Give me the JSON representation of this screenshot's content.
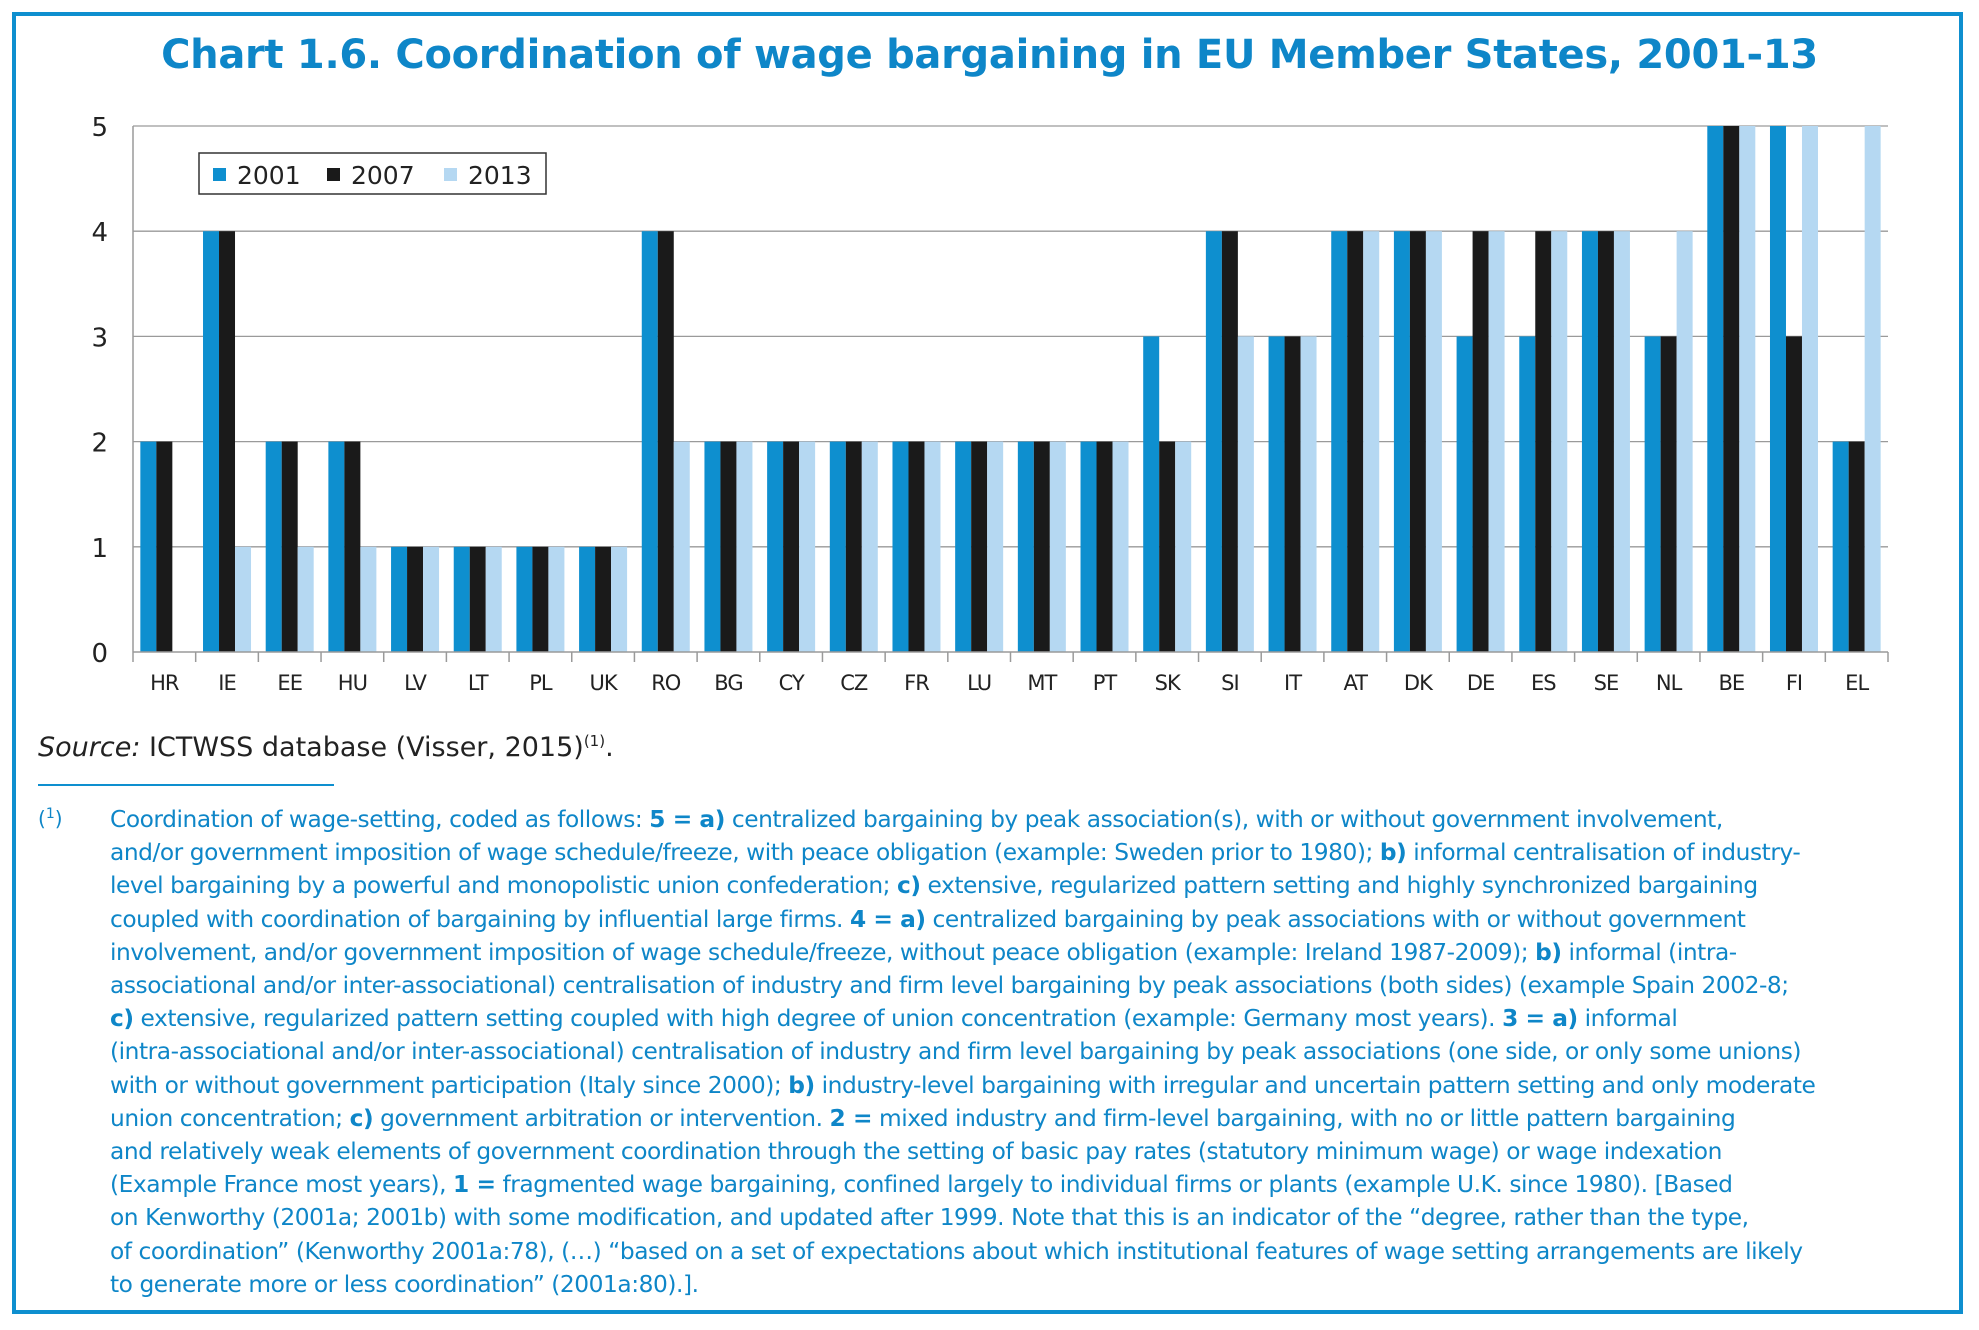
{
  "title": "Chart 1.6. Coordination of wage bargaining in EU Member States, 2001-13",
  "colors": {
    "s2001": "#0e8fcf",
    "s2007": "#1a1a1a",
    "s2013": "#b5d8f2",
    "frame": "#0e8fcf",
    "text": "#0e86c8"
  },
  "chart_data": {
    "type": "bar",
    "title": "",
    "xlabel": "",
    "ylabel": "",
    "ylim": [
      0,
      5
    ],
    "yticks": [
      "0",
      "1",
      "2",
      "3",
      "4",
      "5"
    ],
    "grid": true,
    "legend_position": "top-left",
    "categories": [
      "HR",
      "IE",
      "EE",
      "HU",
      "LV",
      "LT",
      "PL",
      "UK",
      "RO",
      "BG",
      "CY",
      "CZ",
      "FR",
      "LU",
      "MT",
      "PT",
      "SK",
      "SI",
      "IT",
      "AT",
      "DK",
      "DE",
      "ES",
      "SE",
      "NL",
      "BE",
      "FI",
      "EL"
    ],
    "series": [
      {
        "name": "2001",
        "color": "#0e8fcf",
        "values": [
          2,
          4,
          2,
          2,
          1,
          1,
          1,
          1,
          4,
          2,
          2,
          2,
          2,
          2,
          2,
          2,
          3,
          4,
          3,
          4,
          4,
          3,
          3,
          4,
          3,
          5,
          5,
          2
        ]
      },
      {
        "name": "2007",
        "color": "#1a1a1a",
        "values": [
          2,
          4,
          2,
          2,
          1,
          1,
          1,
          1,
          4,
          2,
          2,
          2,
          2,
          2,
          2,
          2,
          2,
          4,
          3,
          4,
          4,
          4,
          4,
          4,
          3,
          5,
          3,
          2
        ]
      },
      {
        "name": "2013",
        "color": "#b5d8f2",
        "values": [
          0,
          1,
          1,
          1,
          1,
          1,
          1,
          1,
          2,
          2,
          2,
          2,
          2,
          2,
          2,
          2,
          2,
          3,
          3,
          4,
          4,
          4,
          4,
          4,
          4,
          5,
          5,
          5
        ]
      }
    ]
  },
  "source": {
    "label": "Source:",
    "text": " ICTWSS database (Visser, 2015)",
    "note_ref": "(1)",
    "end": "."
  },
  "footnote": {
    "marker": "1",
    "lines": [
      [
        [
          "t",
          "Coordination of wage-setting, coded as follows: "
        ],
        [
          "b",
          "5 = a)"
        ],
        [
          "t",
          " centralized bargaining by peak association(s), with or without government involvement,"
        ]
      ],
      [
        [
          "t",
          "and/or government imposition of wage schedule/freeze, with peace obligation (example: Sweden prior to 1980); "
        ],
        [
          "b",
          "b)"
        ],
        [
          "t",
          " informal centralisation of industry-"
        ]
      ],
      [
        [
          "t",
          "level bargaining by a powerful and monopolistic union confederation; "
        ],
        [
          "b",
          "c)"
        ],
        [
          "t",
          " extensive, regularized pattern setting and highly synchronized bargaining"
        ]
      ],
      [
        [
          "t",
          "coupled with coordination of bargaining by influential large firms. "
        ],
        [
          "b",
          "4 = a)"
        ],
        [
          "t",
          " centralized bargaining by peak associations with or without government"
        ]
      ],
      [
        [
          "t",
          "involvement, and/or government imposition of wage schedule/freeze, without peace obligation (example: Ireland 1987-2009); "
        ],
        [
          "b",
          "b)"
        ],
        [
          "t",
          " informal (intra-"
        ]
      ],
      [
        [
          "t",
          "associational and/or inter-associational) centralisation of industry and firm level bargaining by peak associations (both sides) (example Spain 2002-8;"
        ]
      ],
      [
        [
          "b",
          "c)"
        ],
        [
          "t",
          " extensive, regularized pattern setting coupled with high degree of union concentration (example: Germany most years). "
        ],
        [
          "b",
          "3 = a)"
        ],
        [
          "t",
          " informal"
        ]
      ],
      [
        [
          "t",
          "(intra-associational and/or inter-associational) centralisation of industry and firm level bargaining by peak associations (one side, or only some unions)"
        ]
      ],
      [
        [
          "t",
          "with or without government participation (Italy since 2000); "
        ],
        [
          "b",
          "b)"
        ],
        [
          "t",
          " industry-level bargaining with irregular and uncertain pattern setting and only moderate"
        ]
      ],
      [
        [
          "t",
          "union concentration; "
        ],
        [
          "b",
          "c)"
        ],
        [
          "t",
          " government arbitration or intervention. "
        ],
        [
          "b",
          "2 ="
        ],
        [
          "t",
          " mixed industry and firm-level bargaining, with no or little pattern bargaining"
        ]
      ],
      [
        [
          "t",
          "and relatively weak elements of government coordination through the setting of basic pay rates (statutory minimum wage) or wage indexation"
        ]
      ],
      [
        [
          "t",
          "(Example France most years), "
        ],
        [
          "b",
          "1 ="
        ],
        [
          "t",
          " fragmented wage bargaining, confined largely to individual firms or plants (example U.K. since 1980). [Based"
        ]
      ],
      [
        [
          "t",
          "on Kenworthy (2001a; 2001b) with some modification, and updated after 1999. Note that this is an indicator of the “degree, rather than the type,"
        ]
      ],
      [
        [
          "t",
          "of coordination” (Kenworthy 2001a:78), (…) “based on a set of expectations about which institutional features of wage setting arrangements are likely"
        ]
      ],
      [
        [
          "t",
          "to generate more or less coordination” (2001a:80).]."
        ]
      ]
    ]
  }
}
